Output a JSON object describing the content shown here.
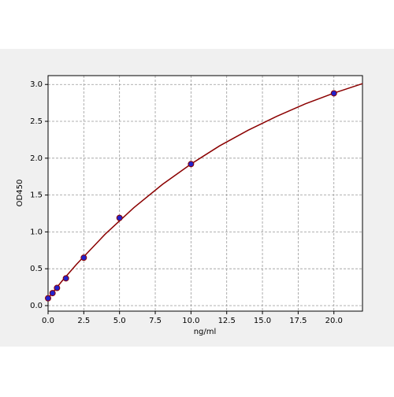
{
  "chart_data": {
    "type": "scatter",
    "x_label": "ng/ml",
    "y_label": "OD450",
    "xlim": [
      0,
      22
    ],
    "ylim": [
      -0.075,
      3.12
    ],
    "xticks": [
      {
        "value": 0,
        "label": "0.0"
      },
      {
        "value": 2.5,
        "label": "2.5"
      },
      {
        "value": 5,
        "label": "5.0"
      },
      {
        "value": 7.5,
        "label": "7.5"
      },
      {
        "value": 10,
        "label": "10.0"
      },
      {
        "value": 12.5,
        "label": "12.5"
      },
      {
        "value": 15,
        "label": "15.0"
      },
      {
        "value": 17.5,
        "label": "17.5"
      },
      {
        "value": 20,
        "label": "20.0"
      }
    ],
    "yticks": [
      {
        "value": 0,
        "label": "0.0"
      },
      {
        "value": 0.5,
        "label": "0.5"
      },
      {
        "value": 1,
        "label": "1.0"
      },
      {
        "value": 1.5,
        "label": "1.5"
      },
      {
        "value": 2,
        "label": "2.0"
      },
      {
        "value": 2.5,
        "label": "2.5"
      },
      {
        "value": 3,
        "label": "3.0"
      }
    ],
    "grid": true,
    "series": [
      {
        "mode": "line",
        "color": "#8b0000",
        "x": [
          0,
          1,
          2,
          4,
          6,
          8,
          10,
          12,
          14,
          16,
          18,
          20,
          22
        ],
        "values": [
          0.1,
          0.339,
          0.562,
          0.97,
          1.328,
          1.644,
          1.921,
          2.167,
          2.379,
          2.568,
          2.737,
          2.883,
          3.011
        ]
      },
      {
        "mode": "markers",
        "color": "#2222cc",
        "edge_color": "#8b0000",
        "x": [
          0,
          0.3125,
          0.625,
          1.25,
          2.5,
          5,
          10,
          20
        ],
        "values": [
          0.1,
          0.17,
          0.24,
          0.37,
          0.65,
          1.19,
          1.92,
          2.88
        ]
      }
    ]
  }
}
